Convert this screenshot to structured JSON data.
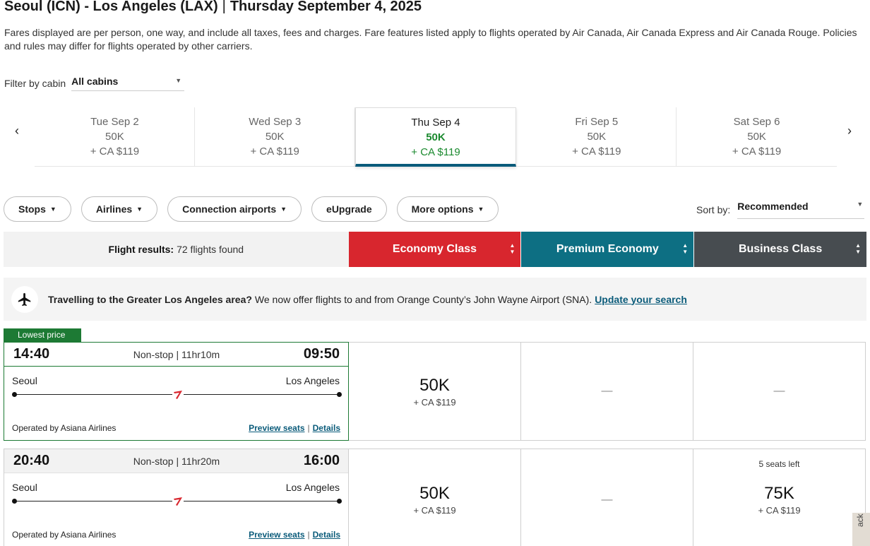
{
  "header": {
    "route": "Seoul (ICN) - Los Angeles (LAX)",
    "separator": "|",
    "date": "Thursday September 4, 2025",
    "disclaimer": "Fares displayed are per person, one way, and include all taxes, fees and charges. Fare features listed apply to flights operated by Air Canada, Air Canada Express and Air Canada Rouge. Policies and rules may differ for flights operated by other carriers."
  },
  "cabin_filter": {
    "label": "Filter by cabin",
    "value": "All cabins"
  },
  "date_strip": [
    {
      "date": "Tue Sep 2",
      "points": "50K",
      "cash": "+ CA $119",
      "active": false
    },
    {
      "date": "Wed Sep 3",
      "points": "50K",
      "cash": "+ CA $119",
      "active": false
    },
    {
      "date": "Thu Sep 4",
      "points": "50K",
      "cash": "+ CA $119",
      "active": true
    },
    {
      "date": "Fri Sep 5",
      "points": "50K",
      "cash": "+ CA $119",
      "active": false
    },
    {
      "date": "Sat Sep 6",
      "points": "50K",
      "cash": "+ CA $119",
      "active": false
    }
  ],
  "filters": {
    "stops": "Stops",
    "airlines": "Airlines",
    "connection_airports": "Connection airports",
    "eupgrade": "eUpgrade",
    "more_options": "More options"
  },
  "sort": {
    "label": "Sort by:",
    "value": "Recommended"
  },
  "results_header": {
    "label": "Flight results:",
    "count": "72 flights found",
    "economy": "Economy Class",
    "premium": "Premium Economy",
    "business": "Business Class"
  },
  "notice": {
    "bold": "Travelling to the Greater Los Angeles area?",
    "text": "We now offer flights to and from Orange County’s John Wayne Airport (SNA).",
    "link": "Update your search"
  },
  "lowest_badge": "Lowest price",
  "flights": [
    {
      "depart": "14:40",
      "duration": "Non-stop | 11hr10m",
      "arrive": "09:50",
      "from": "Seoul",
      "to": "Los Angeles",
      "operator": "Operated by Asiana Airlines",
      "preview": "Preview seats",
      "sep": "|",
      "details": "Details",
      "economy": {
        "points": "50K",
        "cash": "+ CA $119"
      },
      "premium": {
        "none": "—"
      },
      "business": {
        "none": "—"
      }
    },
    {
      "depart": "20:40",
      "duration": "Non-stop | 11hr20m",
      "arrive": "16:00",
      "from": "Seoul",
      "to": "Los Angeles",
      "operator": "Operated by Asiana Airlines",
      "preview": "Preview seats",
      "sep": "|",
      "details": "Details",
      "economy": {
        "points": "50K",
        "cash": "+ CA $119"
      },
      "premium": {
        "none": "—"
      },
      "business": {
        "seats": "5 seats left",
        "points": "75K",
        "cash": "+ CA $119"
      }
    }
  ],
  "feedback": "ack",
  "colors": {
    "economy": "#d8262e",
    "premium": "#0d6f83",
    "business": "#474c50",
    "lowest": "#1d7a34",
    "link": "#0a5b7a"
  }
}
